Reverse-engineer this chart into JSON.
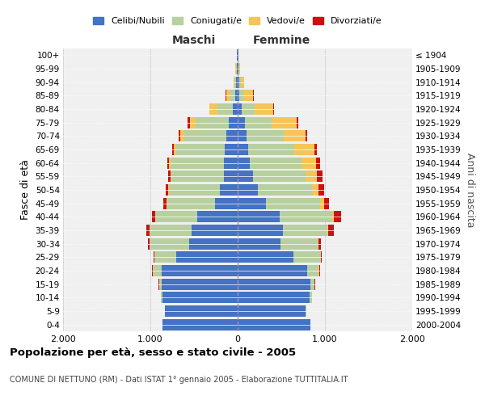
{
  "age_groups_bottom_to_top": [
    "0-4",
    "5-9",
    "10-14",
    "15-19",
    "20-24",
    "25-29",
    "30-34",
    "35-39",
    "40-44",
    "45-49",
    "50-54",
    "55-59",
    "60-64",
    "65-69",
    "70-74",
    "75-79",
    "80-84",
    "85-89",
    "90-94",
    "95-99",
    "100+"
  ],
  "birth_years_bottom_to_top": [
    "2000-2004",
    "1995-1999",
    "1990-1994",
    "1985-1989",
    "1980-1984",
    "1975-1979",
    "1970-1974",
    "1965-1969",
    "1960-1964",
    "1955-1959",
    "1950-1954",
    "1945-1949",
    "1940-1944",
    "1935-1939",
    "1930-1934",
    "1925-1929",
    "1920-1924",
    "1915-1919",
    "1910-1914",
    "1905-1909",
    "≤ 1904"
  ],
  "maschi": {
    "celibi": [
      860,
      830,
      860,
      870,
      870,
      700,
      560,
      530,
      460,
      260,
      200,
      160,
      160,
      150,
      130,
      100,
      60,
      30,
      15,
      10,
      5
    ],
    "coniugati": [
      5,
      5,
      20,
      30,
      100,
      250,
      450,
      480,
      480,
      550,
      590,
      600,
      610,
      550,
      480,
      380,
      170,
      60,
      20,
      10,
      5
    ],
    "vedovi": [
      0,
      0,
      0,
      1,
      2,
      2,
      2,
      2,
      3,
      5,
      5,
      10,
      15,
      30,
      50,
      70,
      90,
      40,
      10,
      5,
      2
    ],
    "divorziati": [
      0,
      0,
      2,
      3,
      5,
      10,
      20,
      30,
      40,
      35,
      30,
      30,
      25,
      20,
      20,
      20,
      5,
      5,
      2,
      0,
      0
    ]
  },
  "femmine": {
    "nubili": [
      830,
      780,
      820,
      830,
      800,
      640,
      490,
      520,
      480,
      320,
      230,
      180,
      140,
      120,
      100,
      80,
      50,
      20,
      15,
      10,
      5
    ],
    "coniugate": [
      5,
      5,
      30,
      50,
      130,
      310,
      430,
      510,
      600,
      620,
      620,
      600,
      590,
      530,
      430,
      310,
      140,
      50,
      20,
      10,
      5
    ],
    "vedove": [
      0,
      0,
      1,
      2,
      5,
      5,
      5,
      10,
      25,
      50,
      80,
      130,
      170,
      230,
      250,
      290,
      220,
      110,
      40,
      10,
      2
    ],
    "divorziate": [
      0,
      0,
      2,
      3,
      5,
      10,
      30,
      60,
      80,
      60,
      60,
      60,
      40,
      25,
      20,
      15,
      5,
      5,
      2,
      0,
      0
    ]
  },
  "colors": {
    "celibi_nubili": "#4472C4",
    "coniugati": "#B8CFA0",
    "vedovi": "#F5C55A",
    "divorziati": "#CC1111"
  },
  "xlim": 2000,
  "title": "Popolazione per età, sesso e stato civile - 2005",
  "subtitle": "COMUNE DI NETTUNO (RM) - Dati ISTAT 1° gennaio 2005 - Elaborazione TUTTITALIA.IT",
  "ylabel_left": "Fasce di età",
  "ylabel_right": "Anni di nascita",
  "xlabel_left": "Maschi",
  "xlabel_right": "Femmine",
  "legend_labels": [
    "Celibi/Nubili",
    "Coniugati/e",
    "Vedovi/e",
    "Divorziati/e"
  ],
  "background_color": "#ffffff",
  "plot_bg": "#f0f0f0"
}
